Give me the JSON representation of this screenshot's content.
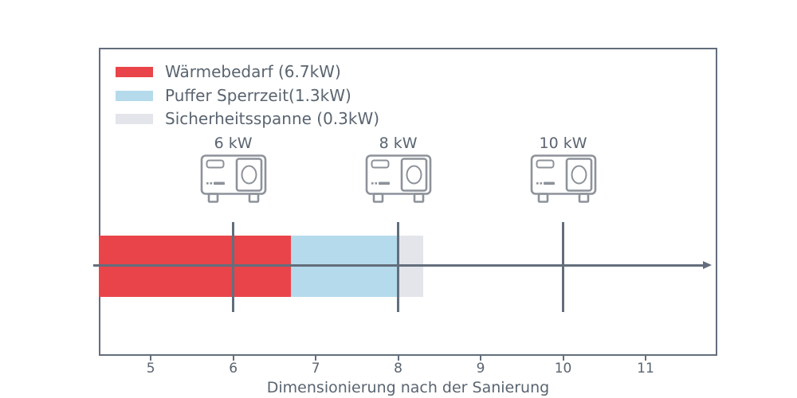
{
  "colors": {
    "red": "#e94449",
    "light_blue": "#b5daec",
    "light_gray": "#e3e5eb",
    "line": "#636e7c",
    "text": "#5a6470",
    "icon_gray": "#8d929a",
    "background": "#ffffff"
  },
  "chart_data": {
    "type": "bar",
    "orientation": "horizontal-stacked",
    "title": "",
    "xlabel": "Dimensionierung nach der Sanierung",
    "ylabel": "",
    "unit": "kW",
    "xlim": [
      4.37,
      11.87
    ],
    "xticks": [
      5,
      6,
      7,
      8,
      9,
      10,
      11
    ],
    "grid": false,
    "axis_arrow": true,
    "bar_total_kw": 8.3,
    "segments": [
      {
        "name": "Wärmebedarf",
        "value_kw": 6.7,
        "start": 4.37,
        "end": 6.7,
        "color": "#e94449"
      },
      {
        "name": "Puffer Sperrzeit",
        "value_kw": 1.3,
        "start": 6.7,
        "end": 8.0,
        "color": "#b5daec"
      },
      {
        "name": "Sicherheitsspanne",
        "value_kw": 0.3,
        "start": 8.0,
        "end": 8.3,
        "color": "#e3e5eb"
      }
    ],
    "markers": [
      {
        "label": "6 kW",
        "value": 6,
        "icon": "heat-pump-icon"
      },
      {
        "label": "8 kW",
        "value": 8,
        "icon": "heat-pump-icon"
      },
      {
        "label": "10 kW",
        "value": 10,
        "icon": "heat-pump-icon"
      }
    ],
    "legend_position": "upper left",
    "legend": [
      {
        "label": "Wärmebedarf (6.7kW)",
        "color": "#e94449"
      },
      {
        "label": "Puffer Sperrzeit(1.3kW)",
        "color": "#b5daec"
      },
      {
        "label": "Sicherheitsspanne (0.3kW)",
        "color": "#e3e5eb"
      }
    ]
  }
}
